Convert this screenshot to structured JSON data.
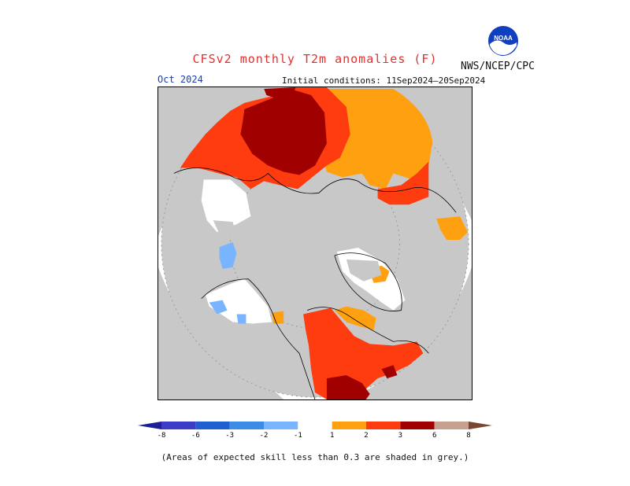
{
  "title": "CFSv2 monthly T2m anomalies (F)",
  "agency": "NWS/NCEP/CPC",
  "logo_text": "NOAA",
  "forecast_month": "Oct 2024",
  "initial_conditions": "Initial conditions: 11Sep2024—20Sep2024",
  "footnote": "(Areas of expected skill less than 0.3 are shaded in grey.)",
  "colors": {
    "land_grey": "#c8c8c8",
    "white": "#ffffff",
    "orange": "#ffa010",
    "red_orange": "#ff3c10",
    "dark_red": "#a00000",
    "lt_blue": "#78b4ff",
    "mid_blue": "#3c8ce6",
    "blue": "#1e5fd2",
    "dark_blue": "#3c3cc8",
    "navy": "#1e1e96",
    "pink": "#c8a090",
    "brown": "#784632"
  },
  "colorbar": {
    "labels": [
      "-8",
      "-6",
      "-3",
      "-2",
      "-1",
      "1",
      "2",
      "3",
      "6",
      "8"
    ],
    "bins": [
      {
        "color": "#1e1e96"
      },
      {
        "color": "#3c3cc8"
      },
      {
        "color": "#1e5fd2"
      },
      {
        "color": "#3c8ce6"
      },
      {
        "color": "#78b4ff"
      },
      {
        "color": "#ffffff"
      },
      {
        "color": "#ffa010"
      },
      {
        "color": "#ff3c10"
      },
      {
        "color": "#a00000"
      },
      {
        "color": "#c8a090"
      },
      {
        "color": "#784632"
      }
    ]
  }
}
